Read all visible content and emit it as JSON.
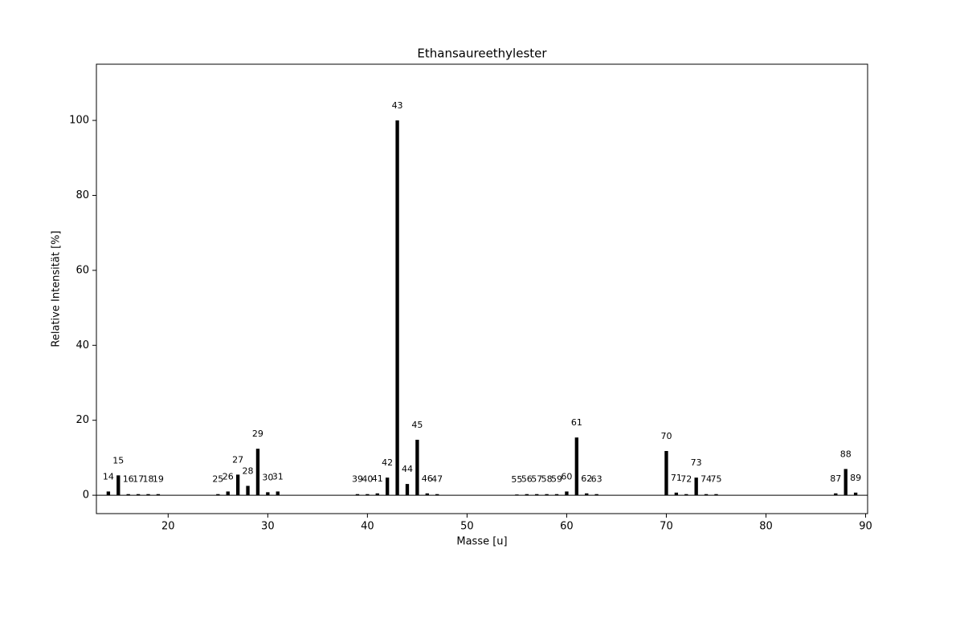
{
  "chart_data": {
    "type": "bar",
    "title": "Ethansaureethylester",
    "x_label": "Masse [u]",
    "y_label": "Relative Intensität [%]",
    "x": [
      14,
      15,
      16,
      17,
      18,
      19,
      25,
      26,
      27,
      28,
      29,
      30,
      31,
      39,
      40,
      41,
      42,
      43,
      44,
      45,
      46,
      47,
      55,
      56,
      57,
      58,
      59,
      60,
      61,
      62,
      63,
      70,
      71,
      72,
      73,
      74,
      75,
      87,
      88,
      89
    ],
    "values": [
      1.0,
      5.3,
      0.3,
      0.3,
      0.3,
      0.3,
      0.3,
      1.0,
      5.5,
      2.5,
      12.4,
      0.8,
      1.0,
      0.3,
      0.3,
      0.5,
      4.7,
      100,
      3.0,
      14.8,
      0.5,
      0.3,
      0.2,
      0.3,
      0.3,
      0.3,
      0.3,
      1.0,
      15.4,
      0.5,
      0.3,
      11.8,
      0.7,
      0.3,
      4.7,
      0.3,
      0.3,
      0.5,
      7.0,
      0.7
    ],
    "color": "#000000",
    "xlim": [
      12.8,
      90.2
    ],
    "ylim": [
      -4.9,
      115
    ],
    "xticks": [
      20,
      30,
      40,
      50,
      60,
      70,
      80,
      90
    ],
    "yticks": [
      0,
      20,
      40,
      60,
      80,
      100
    ]
  }
}
